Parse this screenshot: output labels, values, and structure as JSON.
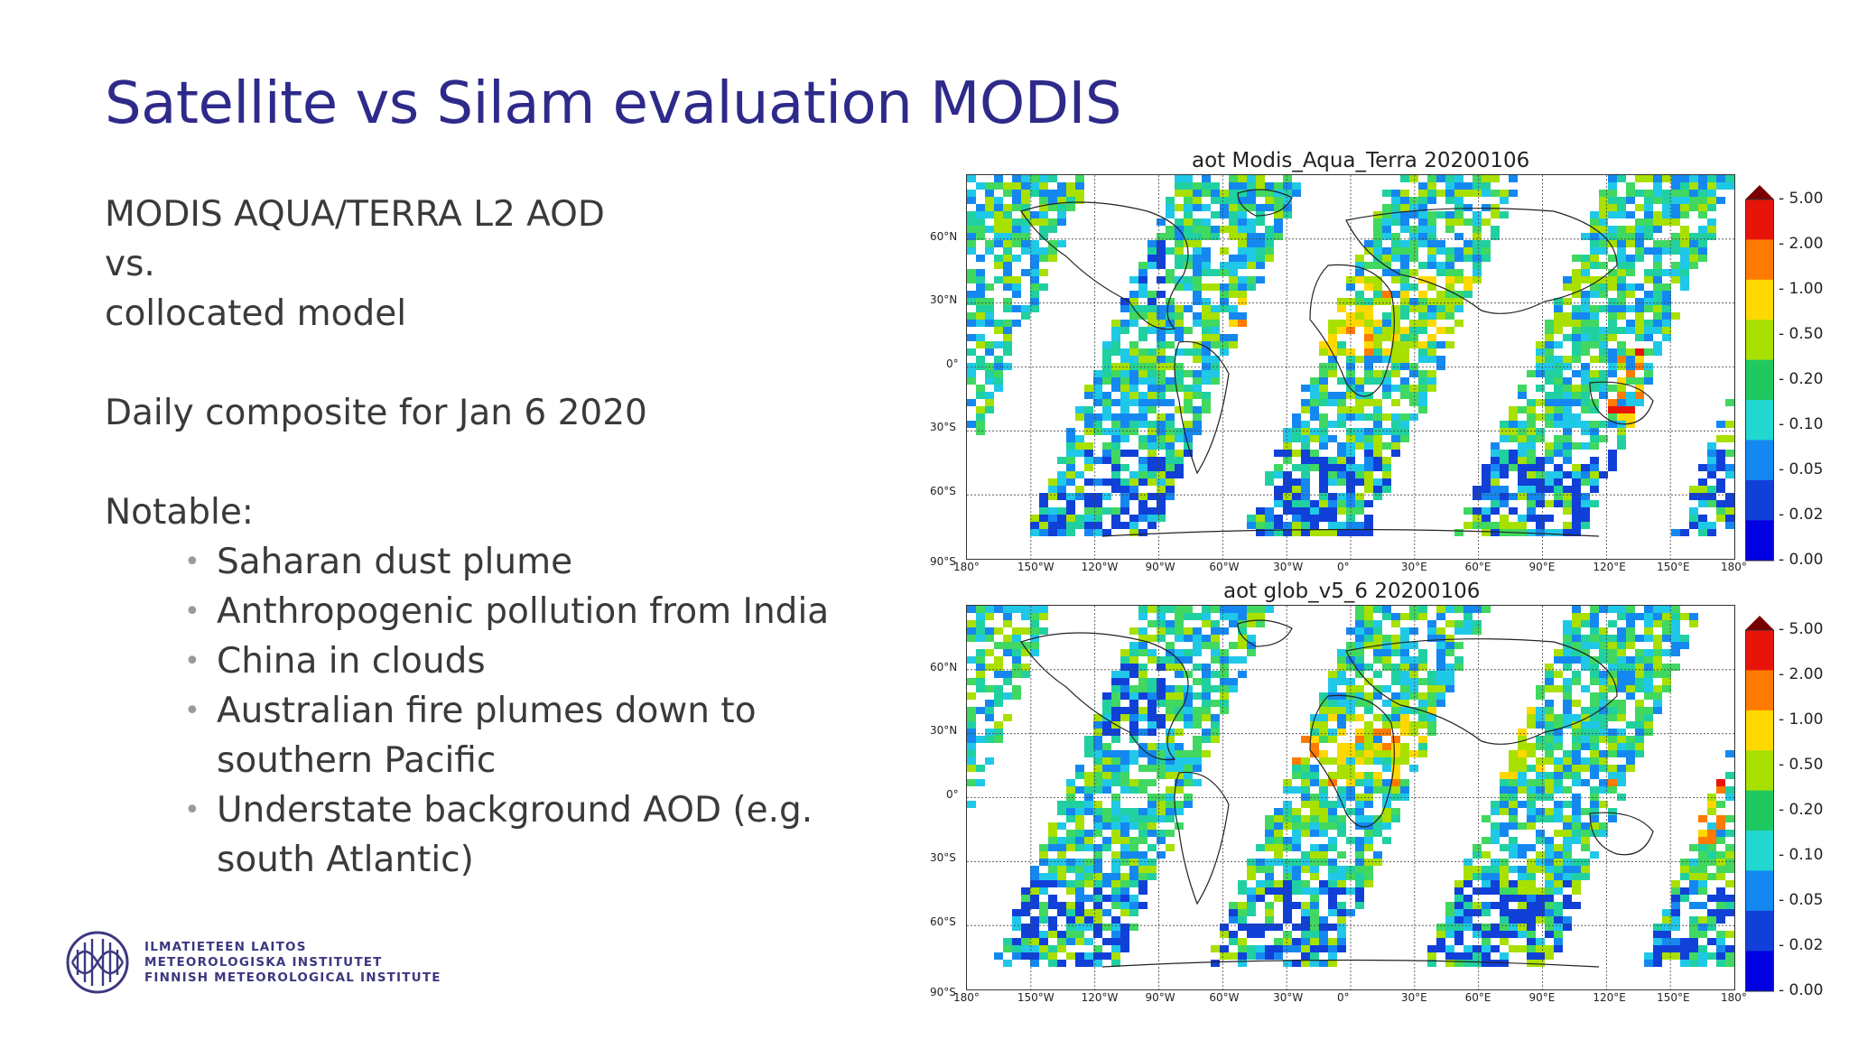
{
  "slide": {
    "title": "Satellite vs Silam evaluation MODIS",
    "lines": [
      "MODIS AQUA/TERRA L2 AOD",
      "vs.",
      "collocated model",
      "Daily composite for Jan 6 2020",
      "Notable:"
    ],
    "bullets": [
      "Saharan dust plume",
      "Anthropogenic pollution from India",
      "China in clouds",
      "Australian fire plumes down to southern Pacific",
      "Understate background AOD (e.g. south Atlantic)"
    ]
  },
  "logo": {
    "lines": [
      "ILMATIETEEN LAITOS",
      "METEOROLOGISKA INSTITUTET",
      "FINNISH METEOROLOGICAL INSTITUTE"
    ]
  },
  "maps": [
    {
      "title": "aot  Modis_Aqua_Terra 20200106",
      "lat_labels": [
        "60°N",
        "30°N",
        "0°",
        "30°S",
        "60°S",
        "90°S"
      ],
      "lon_labels": [
        "180°",
        "150°W",
        "120°W",
        "90°W",
        "60°W",
        "30°W",
        "0°",
        "30°E",
        "60°E",
        "90°E",
        "120°E",
        "150°E",
        "180°"
      ],
      "colorbar_ticks": [
        "5.00",
        "2.00",
        "1.00",
        "0.50",
        "0.20",
        "0.10",
        "0.05",
        "0.02",
        "0.00"
      ]
    },
    {
      "title": "aot  glob_v5_6 20200106",
      "lat_labels": [
        "60°N",
        "30°N",
        "0°",
        "30°S",
        "60°S",
        "90°S"
      ],
      "lon_labels": [
        "180°",
        "150°W",
        "120°W",
        "90°W",
        "60°W",
        "30°W",
        "0°",
        "30°E",
        "60°E",
        "90°E",
        "120°E",
        "150°E",
        "180°"
      ],
      "colorbar_ticks": [
        "5.00",
        "2.00",
        "1.00",
        "0.50",
        "0.20",
        "0.10",
        "0.05",
        "0.02",
        "0.00"
      ]
    }
  ],
  "colors": {
    "title": "#2e2a8a",
    "colorbar": [
      "#7a0000",
      "#e8140a",
      "#ff7a00",
      "#ffd800",
      "#a8e000",
      "#20c860",
      "#20d8d0",
      "#1488f0",
      "#1040d8",
      "#0000e0"
    ]
  }
}
